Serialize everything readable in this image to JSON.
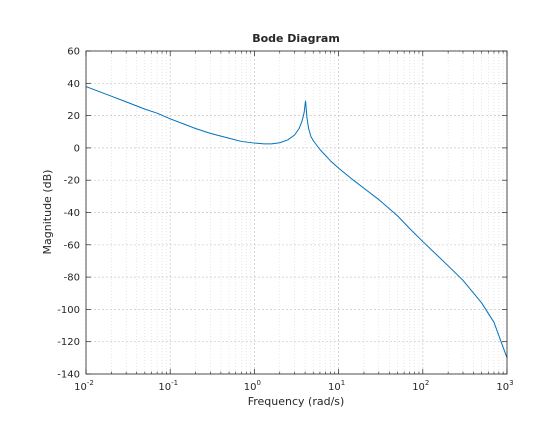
{
  "chart_data": {
    "type": "line",
    "title": "Bode Diagram",
    "xlabel": "Frequency  (rad/s)",
    "ylabel": "Magnitude (dB)",
    "xscale": "log",
    "xlim": [
      0.01,
      1000
    ],
    "ylim": [
      -140,
      60
    ],
    "grid": true,
    "x_tick_base": "10",
    "x_tick_exponents": [
      "-2",
      "-1",
      "0",
      "1",
      "2",
      "3"
    ],
    "y_ticks": [
      60,
      40,
      20,
      0,
      -20,
      -40,
      -60,
      -80,
      -100,
      -120,
      -140
    ],
    "series_color": "#0072bd",
    "series": [
      {
        "x": [
          0.01,
          0.02,
          0.03,
          0.05,
          0.07,
          0.1,
          0.15,
          0.2,
          0.3,
          0.5,
          0.7,
          1.0,
          1.3,
          1.6,
          2.0,
          2.5,
          3.0,
          3.4,
          3.7,
          3.9,
          4.0,
          4.05,
          4.1,
          4.2,
          4.4,
          4.7,
          5.0,
          6.0,
          8.0,
          10,
          15,
          20,
          30,
          50,
          70,
          100,
          200,
          300,
          500,
          700,
          1000
        ],
        "y": [
          38,
          32,
          28.5,
          24,
          21.5,
          18,
          14.5,
          12,
          9,
          6,
          4,
          3,
          2.5,
          2.5,
          3.2,
          5,
          8,
          12,
          17,
          22,
          27,
          29,
          26,
          19,
          12,
          7,
          4.5,
          -1,
          -8,
          -12.5,
          -20,
          -25,
          -32,
          -42,
          -50,
          -58,
          -73,
          -82,
          -96,
          -108,
          -130
        ]
      }
    ]
  }
}
